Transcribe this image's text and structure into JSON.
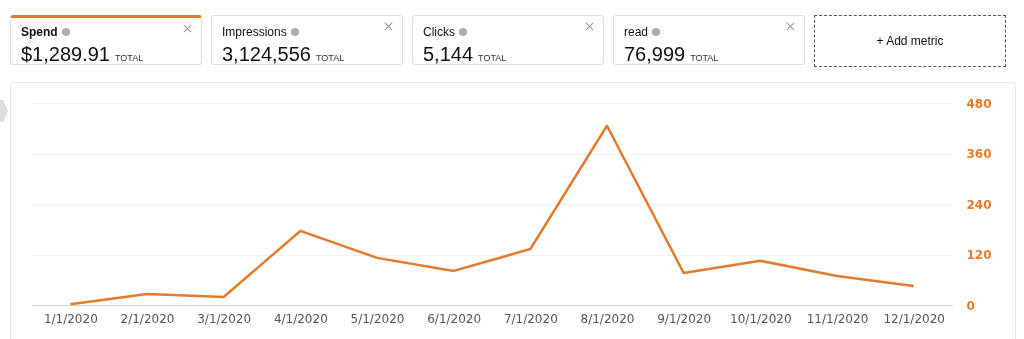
{
  "chart_data": {
    "type": "line",
    "categories": [
      "1/1/2020",
      "2/1/2020",
      "3/1/2020",
      "4/1/2020",
      "5/1/2020",
      "6/1/2020",
      "7/1/2020",
      "8/1/2020",
      "9/1/2020",
      "10/1/2020",
      "11/1/2020",
      "12/1/2020"
    ],
    "series": [
      {
        "color": "#e47b2c",
        "values": [
          2,
          26,
          19,
          176,
          112,
          81,
          133,
          426,
          76,
          105,
          69,
          45
        ]
      }
    ],
    "ylim": [
      0,
      480
    ],
    "yticks": [
      0,
      120,
      240,
      360,
      480
    ],
    "grid": "y",
    "marker": "none",
    "line_style": "solid",
    "annotations": [
      "Spend",
      "$1,289.91",
      "TOTAL",
      "Impressions",
      "3,124,556",
      "TOTAL",
      "Clicks",
      "5,144",
      "TOTAL",
      "read",
      "76,999",
      "TOTAL",
      "+ Add metric"
    ]
  }
}
